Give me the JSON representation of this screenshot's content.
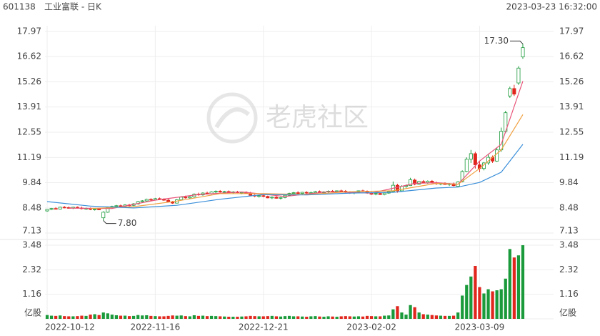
{
  "header": {
    "code": "601138",
    "name": "工业富联 - 日K",
    "timestamp": "2023-03-23 16:32:00"
  },
  "watermark": "老虎社区",
  "chart_data": {
    "type": "candlestick",
    "up_color": "#1a9a3a",
    "down_color": "#e0261d",
    "grid": true,
    "categories": [
      "2022-10-12",
      null,
      null,
      null,
      null,
      null,
      null,
      null,
      null,
      null,
      null,
      null,
      null,
      null,
      null,
      null,
      null,
      null,
      null,
      null,
      null,
      null,
      null,
      null,
      null,
      "2022-11-16",
      null,
      null,
      null,
      null,
      null,
      null,
      null,
      null,
      null,
      null,
      null,
      null,
      null,
      null,
      null,
      null,
      null,
      null,
      null,
      null,
      null,
      null,
      null,
      null,
      "2022-12-21",
      null,
      null,
      null,
      null,
      null,
      null,
      null,
      null,
      null,
      null,
      null,
      null,
      null,
      null,
      null,
      null,
      null,
      null,
      null,
      null,
      null,
      null,
      null,
      null,
      "2023-02-02",
      null,
      null,
      null,
      null,
      null,
      null,
      null,
      null,
      null,
      null,
      null,
      null,
      null,
      null,
      null,
      null,
      null,
      null,
      null,
      null,
      null,
      null,
      null,
      null,
      "2023-03-09",
      null,
      null,
      null,
      null,
      null,
      null,
      null,
      null,
      null,
      null
    ],
    "open": [
      8.32,
      8.4,
      8.45,
      8.42,
      8.52,
      8.5,
      8.47,
      8.52,
      8.48,
      8.44,
      8.46,
      8.4,
      8.42,
      7.95,
      8.25,
      8.5,
      8.56,
      8.6,
      8.58,
      8.64,
      8.62,
      8.7,
      8.82,
      8.86,
      8.94,
      8.92,
      8.98,
      8.94,
      8.9,
      8.8,
      8.74,
      8.92,
      9.06,
      9.02,
      9.08,
      9.22,
      9.18,
      9.28,
      9.24,
      9.34,
      9.38,
      9.34,
      9.36,
      9.32,
      9.34,
      9.3,
      9.32,
      9.28,
      9.16,
      9.12,
      9.14,
      9.1,
      9.02,
      9.06,
      9.0,
      9.04,
      9.16,
      9.26,
      9.3,
      9.26,
      9.32,
      9.28,
      9.3,
      9.36,
      9.32,
      9.34,
      9.38,
      9.36,
      9.4,
      9.38,
      9.32,
      9.3,
      9.34,
      9.4,
      9.38,
      9.28,
      9.22,
      9.26,
      9.2,
      9.28,
      9.36,
      9.7,
      9.4,
      9.64,
      9.68,
      9.98,
      9.76,
      9.9,
      9.84,
      9.92,
      9.82,
      9.78,
      9.8,
      9.74,
      9.78,
      9.64,
      9.9,
      10.44,
      11.1,
      11.4,
      10.8,
      10.6,
      10.9,
      11.2,
      11.0,
      11.6,
      12.6,
      14.5,
      14.9,
      15.2,
      16.6
    ],
    "high": [
      8.42,
      8.48,
      8.52,
      8.55,
      8.58,
      8.56,
      8.54,
      8.56,
      8.55,
      8.5,
      8.5,
      8.46,
      8.48,
      8.3,
      8.55,
      8.6,
      8.64,
      8.66,
      8.68,
      8.7,
      8.74,
      8.86,
      8.9,
      8.98,
      9.0,
      9.02,
      9.04,
      9.0,
      8.96,
      8.86,
      8.96,
      9.1,
      9.14,
      9.12,
      9.26,
      9.3,
      9.32,
      9.36,
      9.38,
      9.42,
      9.44,
      9.4,
      9.42,
      9.38,
      9.4,
      9.36,
      9.38,
      9.34,
      9.22,
      9.18,
      9.2,
      9.14,
      9.1,
      9.12,
      9.08,
      9.2,
      9.3,
      9.34,
      9.38,
      9.34,
      9.38,
      9.36,
      9.4,
      9.42,
      9.38,
      9.42,
      9.44,
      9.42,
      9.46,
      9.44,
      9.38,
      9.36,
      9.42,
      9.46,
      9.42,
      9.34,
      9.3,
      9.32,
      9.3,
      9.4,
      9.9,
      9.78,
      9.7,
      9.74,
      10.1,
      10.06,
      9.94,
      9.98,
      9.96,
      9.98,
      9.9,
      9.84,
      9.86,
      9.82,
      9.84,
      9.92,
      10.5,
      11.2,
      11.6,
      11.5,
      11.0,
      10.95,
      11.4,
      11.3,
      11.7,
      12.8,
      13.7,
      15.0,
      15.1,
      16.1,
      17.3
    ],
    "low": [
      8.28,
      8.36,
      8.4,
      8.4,
      8.46,
      8.44,
      8.42,
      8.45,
      8.4,
      8.38,
      8.36,
      8.34,
      8.36,
      7.8,
      8.22,
      8.44,
      8.5,
      8.52,
      8.54,
      8.56,
      8.58,
      8.66,
      8.76,
      8.8,
      8.86,
      8.88,
      8.9,
      8.86,
      8.78,
      8.7,
      8.72,
      8.88,
      8.98,
      8.96,
      9.04,
      9.14,
      9.14,
      9.2,
      9.2,
      9.28,
      9.3,
      9.26,
      9.3,
      9.26,
      9.28,
      9.22,
      9.26,
      9.14,
      9.06,
      9.04,
      9.06,
      9.0,
      8.96,
      8.98,
      8.94,
      9.0,
      9.12,
      9.2,
      9.22,
      9.2,
      9.24,
      9.22,
      9.26,
      9.28,
      9.24,
      9.3,
      9.32,
      9.3,
      9.34,
      9.28,
      9.24,
      9.22,
      9.28,
      9.34,
      9.24,
      9.18,
      9.16,
      9.18,
      9.16,
      9.24,
      9.34,
      9.3,
      9.36,
      9.56,
      9.66,
      9.7,
      9.72,
      9.8,
      9.78,
      9.8,
      9.72,
      9.7,
      9.72,
      9.66,
      9.64,
      9.6,
      9.86,
      10.4,
      10.9,
      10.6,
      10.4,
      10.5,
      10.8,
      10.9,
      10.96,
      11.5,
      12.5,
      14.4,
      14.5,
      15.1,
      16.5
    ],
    "close": [
      8.4,
      8.45,
      8.42,
      8.52,
      8.5,
      8.47,
      8.52,
      8.48,
      8.44,
      8.46,
      8.4,
      8.42,
      8.38,
      8.25,
      8.5,
      8.56,
      8.6,
      8.58,
      8.64,
      8.62,
      8.7,
      8.82,
      8.86,
      8.94,
      8.92,
      8.98,
      8.94,
      8.9,
      8.82,
      8.74,
      8.92,
      9.06,
      9.02,
      9.08,
      9.22,
      9.18,
      9.28,
      9.24,
      9.34,
      9.38,
      9.34,
      9.36,
      9.32,
      9.34,
      9.3,
      9.32,
      9.28,
      9.16,
      9.12,
      9.14,
      9.1,
      9.02,
      9.06,
      9.0,
      9.04,
      9.16,
      9.26,
      9.3,
      9.26,
      9.32,
      9.28,
      9.3,
      9.36,
      9.32,
      9.34,
      9.38,
      9.36,
      9.4,
      9.38,
      9.32,
      9.3,
      9.34,
      9.4,
      9.38,
      9.28,
      9.22,
      9.26,
      9.2,
      9.28,
      9.36,
      9.7,
      9.4,
      9.64,
      9.68,
      10.0,
      9.76,
      9.9,
      9.84,
      9.92,
      9.82,
      9.78,
      9.8,
      9.74,
      9.78,
      9.68,
      9.88,
      10.44,
      11.1,
      11.4,
      10.8,
      10.6,
      10.9,
      11.2,
      11.0,
      11.6,
      12.6,
      13.6,
      14.9,
      14.6,
      16.0,
      17.1
    ],
    "ylim": [
      7.13,
      17.97
    ],
    "yticks": [
      17.97,
      16.62,
      15.26,
      13.91,
      12.55,
      11.19,
      9.84,
      8.48,
      7.13
    ],
    "series": [
      {
        "color": "#e8557a",
        "x": [
          5,
          15,
          25,
          35,
          45,
          55,
          65,
          75,
          85,
          90,
          95,
          100,
          105,
          110
        ],
        "values": [
          8.47,
          8.45,
          8.9,
          9.2,
          9.34,
          9.1,
          9.35,
          9.28,
          9.8,
          9.84,
          9.75,
          11.0,
          11.9,
          15.3
        ]
      },
      {
        "color": "#f0a040",
        "x": [
          10,
          20,
          30,
          40,
          50,
          60,
          70,
          80,
          90,
          95,
          100,
          105,
          110
        ],
        "values": [
          8.45,
          8.55,
          8.85,
          9.25,
          9.25,
          9.2,
          9.35,
          9.4,
          9.8,
          9.75,
          10.6,
          11.6,
          13.5
        ]
      },
      {
        "color": "#3b8fd9",
        "x": [
          0,
          10,
          20,
          30,
          40,
          50,
          60,
          70,
          80,
          90,
          95,
          100,
          105,
          110
        ],
        "values": [
          8.82,
          8.58,
          8.48,
          8.62,
          8.95,
          9.2,
          9.18,
          9.28,
          9.32,
          9.55,
          9.6,
          9.85,
          10.4,
          11.9
        ]
      }
    ],
    "annotations": [
      {
        "at": 110,
        "value": 17.3,
        "label": "17.30"
      },
      {
        "at": 13,
        "value": 7.8,
        "label": "7.80"
      }
    ],
    "volume": {
      "values": [
        0.18,
        0.15,
        0.14,
        0.16,
        0.13,
        0.12,
        0.12,
        0.13,
        0.15,
        0.14,
        0.2,
        0.22,
        0.18,
        0.3,
        0.26,
        0.2,
        0.17,
        0.15,
        0.15,
        0.13,
        0.14,
        0.18,
        0.16,
        0.17,
        0.14,
        0.13,
        0.12,
        0.12,
        0.14,
        0.16,
        0.15,
        0.16,
        0.13,
        0.12,
        0.17,
        0.14,
        0.15,
        0.13,
        0.14,
        0.13,
        0.12,
        0.11,
        0.1,
        0.1,
        0.1,
        0.11,
        0.12,
        0.14,
        0.13,
        0.12,
        0.12,
        0.13,
        0.14,
        0.12,
        0.11,
        0.13,
        0.14,
        0.12,
        0.12,
        0.11,
        0.1,
        0.12,
        0.13,
        0.11,
        0.1,
        0.12,
        0.11,
        0.1,
        0.12,
        0.13,
        0.12,
        0.11,
        0.12,
        0.11,
        0.14,
        0.13,
        0.12,
        0.12,
        0.15,
        0.16,
        0.45,
        0.6,
        0.3,
        0.2,
        0.65,
        0.55,
        0.3,
        0.22,
        0.2,
        0.18,
        0.16,
        0.15,
        0.14,
        0.14,
        0.15,
        0.3,
        1.1,
        1.6,
        2.0,
        2.5,
        1.5,
        1.2,
        1.4,
        1.3,
        1.35,
        1.4,
        1.9,
        3.3,
        2.9,
        3.0,
        3.48
      ],
      "ylim": [
        0,
        3.48
      ],
      "yticks": [
        3.48,
        2.32,
        1.16,
        {
          "value": 0,
          "label": "亿股"
        }
      ]
    }
  }
}
